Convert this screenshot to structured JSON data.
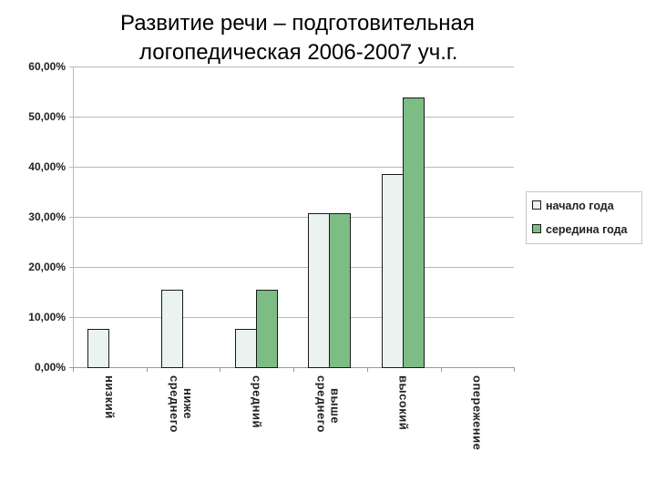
{
  "title": {
    "line1": "Развитие речи – подготовительная",
    "line2": "логопедическая 2006-2007 уч.г."
  },
  "y_ticks": [
    "60,00%",
    "50,00%",
    "40,00%",
    "30,00%",
    "20,00%",
    "10,00%",
    "0,00%"
  ],
  "categories": [
    {
      "lines": [
        "низкий"
      ]
    },
    {
      "lines": [
        "ниже",
        "среднего"
      ]
    },
    {
      "lines": [
        "средний"
      ]
    },
    {
      "lines": [
        "выше",
        "среднего"
      ]
    },
    {
      "lines": [
        "высокий"
      ]
    },
    {
      "lines": [
        "опережение"
      ]
    }
  ],
  "legend": {
    "items": [
      {
        "label": "начало года",
        "color": "#eaf3ef"
      },
      {
        "label": "середина года",
        "color": "#7dbd85"
      }
    ]
  },
  "chart_data": {
    "type": "bar",
    "title": "Развитие речи – подготовительная логопедическая 2006-2007 уч.г.",
    "categories": [
      "низкий",
      "ниже среднего",
      "средний",
      "выше среднего",
      "высокий",
      "опережение"
    ],
    "series": [
      {
        "name": "начало года",
        "color": "#eaf3ef",
        "values": [
          7.69,
          15.38,
          7.69,
          30.77,
          38.46,
          0
        ]
      },
      {
        "name": "середина года",
        "color": "#7dbd85",
        "values": [
          0,
          0,
          15.38,
          30.77,
          53.85,
          0
        ]
      }
    ],
    "xlabel": "",
    "ylabel": "",
    "ylim": [
      0,
      60
    ],
    "y_tick_format": "percent, 2 decimals, comma separator",
    "grid": true,
    "legend_position": "right"
  }
}
